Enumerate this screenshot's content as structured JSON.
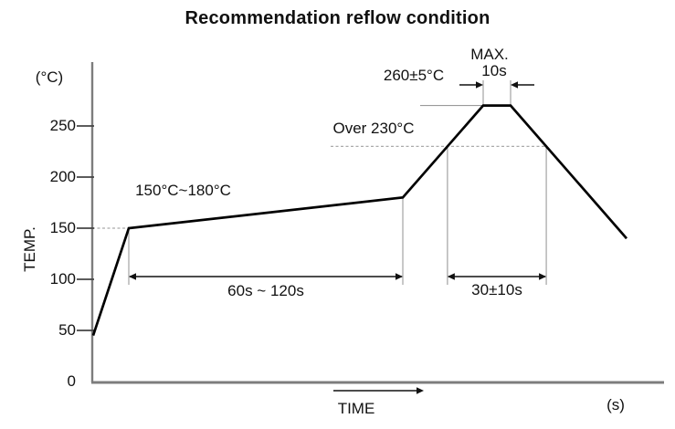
{
  "title": "Recommendation reflow condition",
  "y_axis": {
    "unit": "(°C)",
    "label": "TEMP.",
    "ticks": [
      "250",
      "200",
      "150",
      "100",
      "50",
      "0"
    ]
  },
  "x_axis": {
    "label": "TIME",
    "unit": "(s)"
  },
  "annotations": {
    "ramp_range": "150°C~180°C",
    "soak_time": "60s ~ 120s",
    "over_temp": "Over 230°C",
    "peak_temp": "260±5°C",
    "peak_max": "MAX.",
    "peak_max_time": "10s",
    "over_time": "30±10s"
  },
  "colors": {
    "curve": "#000000",
    "axis": "#7d7d7d",
    "guide": "#9a9a9a",
    "dashed_guide": "#aaaaaa",
    "arrow": "#111111",
    "text": "#111111",
    "background": "#ffffff"
  },
  "chart_data": {
    "type": "line",
    "title": "Recommendation reflow condition",
    "xlabel": "TIME",
    "x_unit": "(s)",
    "ylabel": "TEMP.",
    "y_unit": "(°C)",
    "y_ticks": [
      0,
      50,
      100,
      150,
      200,
      250
    ],
    "ylim": [
      0,
      290
    ],
    "x_ticks": [],
    "grid": false,
    "legend": false,
    "profile_points": [
      {
        "t": 1,
        "temp": 45,
        "note": "start"
      },
      {
        "t": 40,
        "temp": 150,
        "note": "preheat ramp end (150°C)"
      },
      {
        "t": 340,
        "temp": 180,
        "note": "soak end (60s ~ 120s, 150°C~180°C)"
      },
      {
        "t": 428,
        "temp": 270,
        "note": "peak plateau start (labeled 260±5°C)"
      },
      {
        "t": 458,
        "temp": 270,
        "note": "peak plateau end (MAX. 10s)"
      },
      {
        "t": 585,
        "temp": 140,
        "note": "cool-down end"
      }
    ],
    "reference_temp_line": 230,
    "peak_drawn_temp": 270,
    "process_conditions": {
      "preheat_soak": "150°C~180°C for 60s ~ 120s",
      "time_above_230c": "30±10s",
      "peak": "260±5°C for MAX. 10s"
    }
  }
}
